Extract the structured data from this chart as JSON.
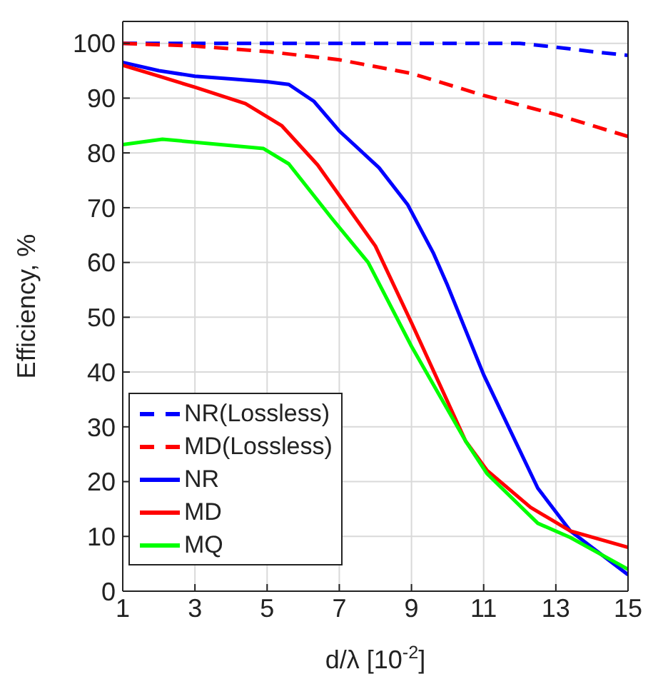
{
  "chart_data": {
    "type": "line",
    "xlabel": "d/λ [10$^{-2}$]",
    "ylabel": "Efficiency, %",
    "xlim": [
      1,
      15
    ],
    "xticks": [
      1,
      3,
      5,
      7,
      9,
      11,
      13,
      15
    ],
    "ylim": [
      0,
      104
    ],
    "yticks": [
      0,
      10,
      20,
      30,
      40,
      50,
      60,
      70,
      80,
      90,
      100
    ],
    "grid": true,
    "legend": "bottom left",
    "marker": "none",
    "series": [
      {
        "name": "NR(Lossless)",
        "color": "#0000ff",
        "line_style": "dashed",
        "x": [
          1,
          3,
          5,
          7,
          9,
          11,
          12,
          13,
          14,
          15
        ],
        "values": [
          100,
          100,
          100,
          100,
          100,
          100,
          100,
          99.3,
          98.5,
          97.8
        ]
      },
      {
        "name": "MD(Lossless)",
        "color": "#ff0000",
        "line_style": "dashed",
        "x": [
          1,
          3,
          5,
          7,
          9,
          11,
          13,
          15
        ],
        "values": [
          100,
          99.5,
          98.5,
          97,
          94.5,
          90.5,
          87,
          83
        ]
      },
      {
        "name": "NR",
        "color": "#0000ff",
        "line_style": "solid",
        "x": [
          1,
          2,
          3,
          4,
          5,
          5.6,
          6.3,
          7,
          8.1,
          8.9,
          9.6,
          10,
          11,
          12.5,
          13.4,
          15
        ],
        "values": [
          96.5,
          95,
          94,
          93.5,
          93,
          92.5,
          89.4,
          84,
          77.3,
          70.5,
          61.8,
          55.8,
          39.5,
          18.8,
          11,
          3
        ]
      },
      {
        "name": "MD",
        "color": "#ff0000",
        "line_style": "solid",
        "x": [
          1,
          2,
          3,
          4.4,
          5.4,
          6.4,
          8,
          9,
          10.5,
          11.1,
          12.3,
          13.4,
          15
        ],
        "values": [
          96,
          94,
          92,
          89,
          85,
          77.8,
          63,
          49,
          27.4,
          22,
          15.3,
          11,
          8
        ]
      },
      {
        "name": "MQ",
        "color": "#00ff00",
        "line_style": "solid",
        "x": [
          1,
          2.1,
          4.9,
          5.6,
          6.8,
          7.8,
          9,
          10.5,
          11.1,
          12.5,
          13.4,
          15
        ],
        "values": [
          81.5,
          82.5,
          80.8,
          78,
          68,
          60,
          44.7,
          27.4,
          21.4,
          12.4,
          9.8,
          4
        ]
      }
    ]
  }
}
